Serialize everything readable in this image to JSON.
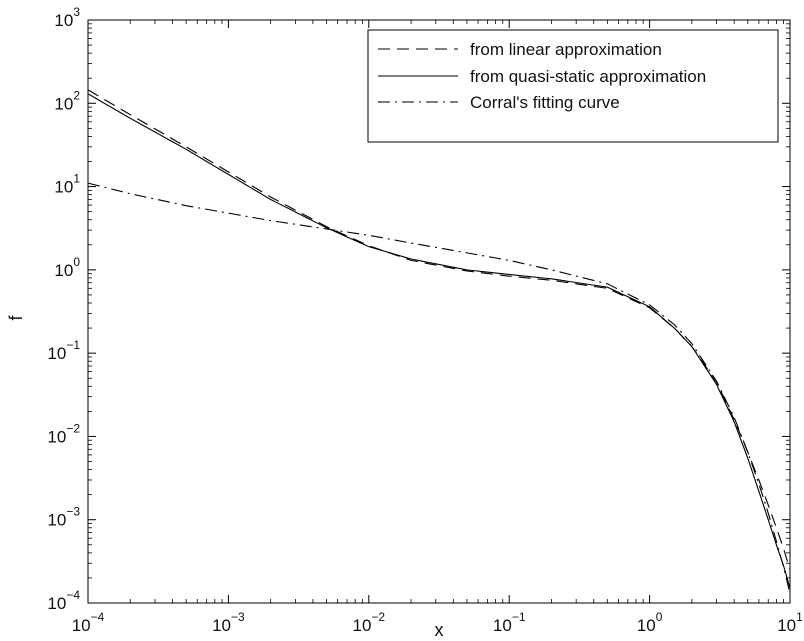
{
  "chart_data": {
    "type": "line",
    "title": "",
    "xlabel": "x",
    "ylabel": "f",
    "x_scale": "log",
    "y_scale": "log",
    "xlim": [
      0.0001,
      10
    ],
    "ylim": [
      0.0001,
      1000
    ],
    "grid": false,
    "legend_position": "top-right",
    "x_ticks": [
      {
        "base": "10",
        "exp": "−4",
        "value": 0.0001
      },
      {
        "base": "10",
        "exp": "−3",
        "value": 0.001
      },
      {
        "base": "10",
        "exp": "−2",
        "value": 0.01
      },
      {
        "base": "10",
        "exp": "−1",
        "value": 0.1
      },
      {
        "base": "10",
        "exp": "0",
        "value": 1
      },
      {
        "base": "10",
        "exp": "1",
        "value": 10
      }
    ],
    "y_ticks": [
      {
        "base": "10",
        "exp": "−4",
        "value": 0.0001
      },
      {
        "base": "10",
        "exp": "−3",
        "value": 0.001
      },
      {
        "base": "10",
        "exp": "−2",
        "value": 0.01
      },
      {
        "base": "10",
        "exp": "−1",
        "value": 0.1
      },
      {
        "base": "10",
        "exp": "0",
        "value": 1
      },
      {
        "base": "10",
        "exp": "1",
        "value": 10
      },
      {
        "base": "10",
        "exp": "2",
        "value": 100
      },
      {
        "base": "10",
        "exp": "3",
        "value": 1000
      }
    ],
    "series": [
      {
        "name": "from linear approximation",
        "style": "dashed",
        "color": "#000000",
        "x": [
          0.0001,
          0.0002,
          0.0005,
          0.001,
          0.002,
          0.005,
          0.01,
          0.02,
          0.05,
          0.1,
          0.2,
          0.5,
          1,
          1.5,
          2,
          3,
          4,
          5,
          6,
          7,
          8,
          9,
          10
        ],
        "y": [
          145,
          73,
          30,
          15,
          7.5,
          3.3,
          1.95,
          1.3,
          0.97,
          0.84,
          0.75,
          0.6,
          0.35,
          0.2,
          0.12,
          0.045,
          0.016,
          0.0065,
          0.003,
          0.0015,
          0.0008,
          0.00045,
          0.00025
        ]
      },
      {
        "name": "from quasi-static approximation",
        "style": "solid",
        "color": "#000000",
        "x": [
          0.0001,
          0.0002,
          0.0005,
          0.001,
          0.002,
          0.005,
          0.01,
          0.02,
          0.05,
          0.1,
          0.2,
          0.5,
          1,
          1.5,
          2,
          3,
          4,
          5,
          6,
          7,
          8,
          9,
          10
        ],
        "y": [
          130,
          66,
          28,
          14,
          7.0,
          3.2,
          1.9,
          1.35,
          1.0,
          0.88,
          0.78,
          0.62,
          0.36,
          0.2,
          0.12,
          0.042,
          0.015,
          0.0055,
          0.0022,
          0.001,
          0.0005,
          0.00028,
          0.00015
        ]
      },
      {
        "name": "Corral's fitting curve",
        "style": "dashdot",
        "color": "#000000",
        "x": [
          0.0001,
          0.0002,
          0.0005,
          0.001,
          0.002,
          0.005,
          0.01,
          0.02,
          0.05,
          0.1,
          0.2,
          0.5,
          1,
          1.5,
          2,
          3,
          4,
          5,
          6,
          7,
          8,
          9,
          10
        ],
        "y": [
          11.0,
          8.2,
          5.9,
          4.8,
          3.9,
          3.1,
          2.6,
          2.1,
          1.6,
          1.3,
          1.0,
          0.68,
          0.38,
          0.22,
          0.13,
          0.046,
          0.017,
          0.0065,
          0.0027,
          0.0012,
          0.00055,
          0.00027,
          0.00013
        ]
      }
    ]
  }
}
